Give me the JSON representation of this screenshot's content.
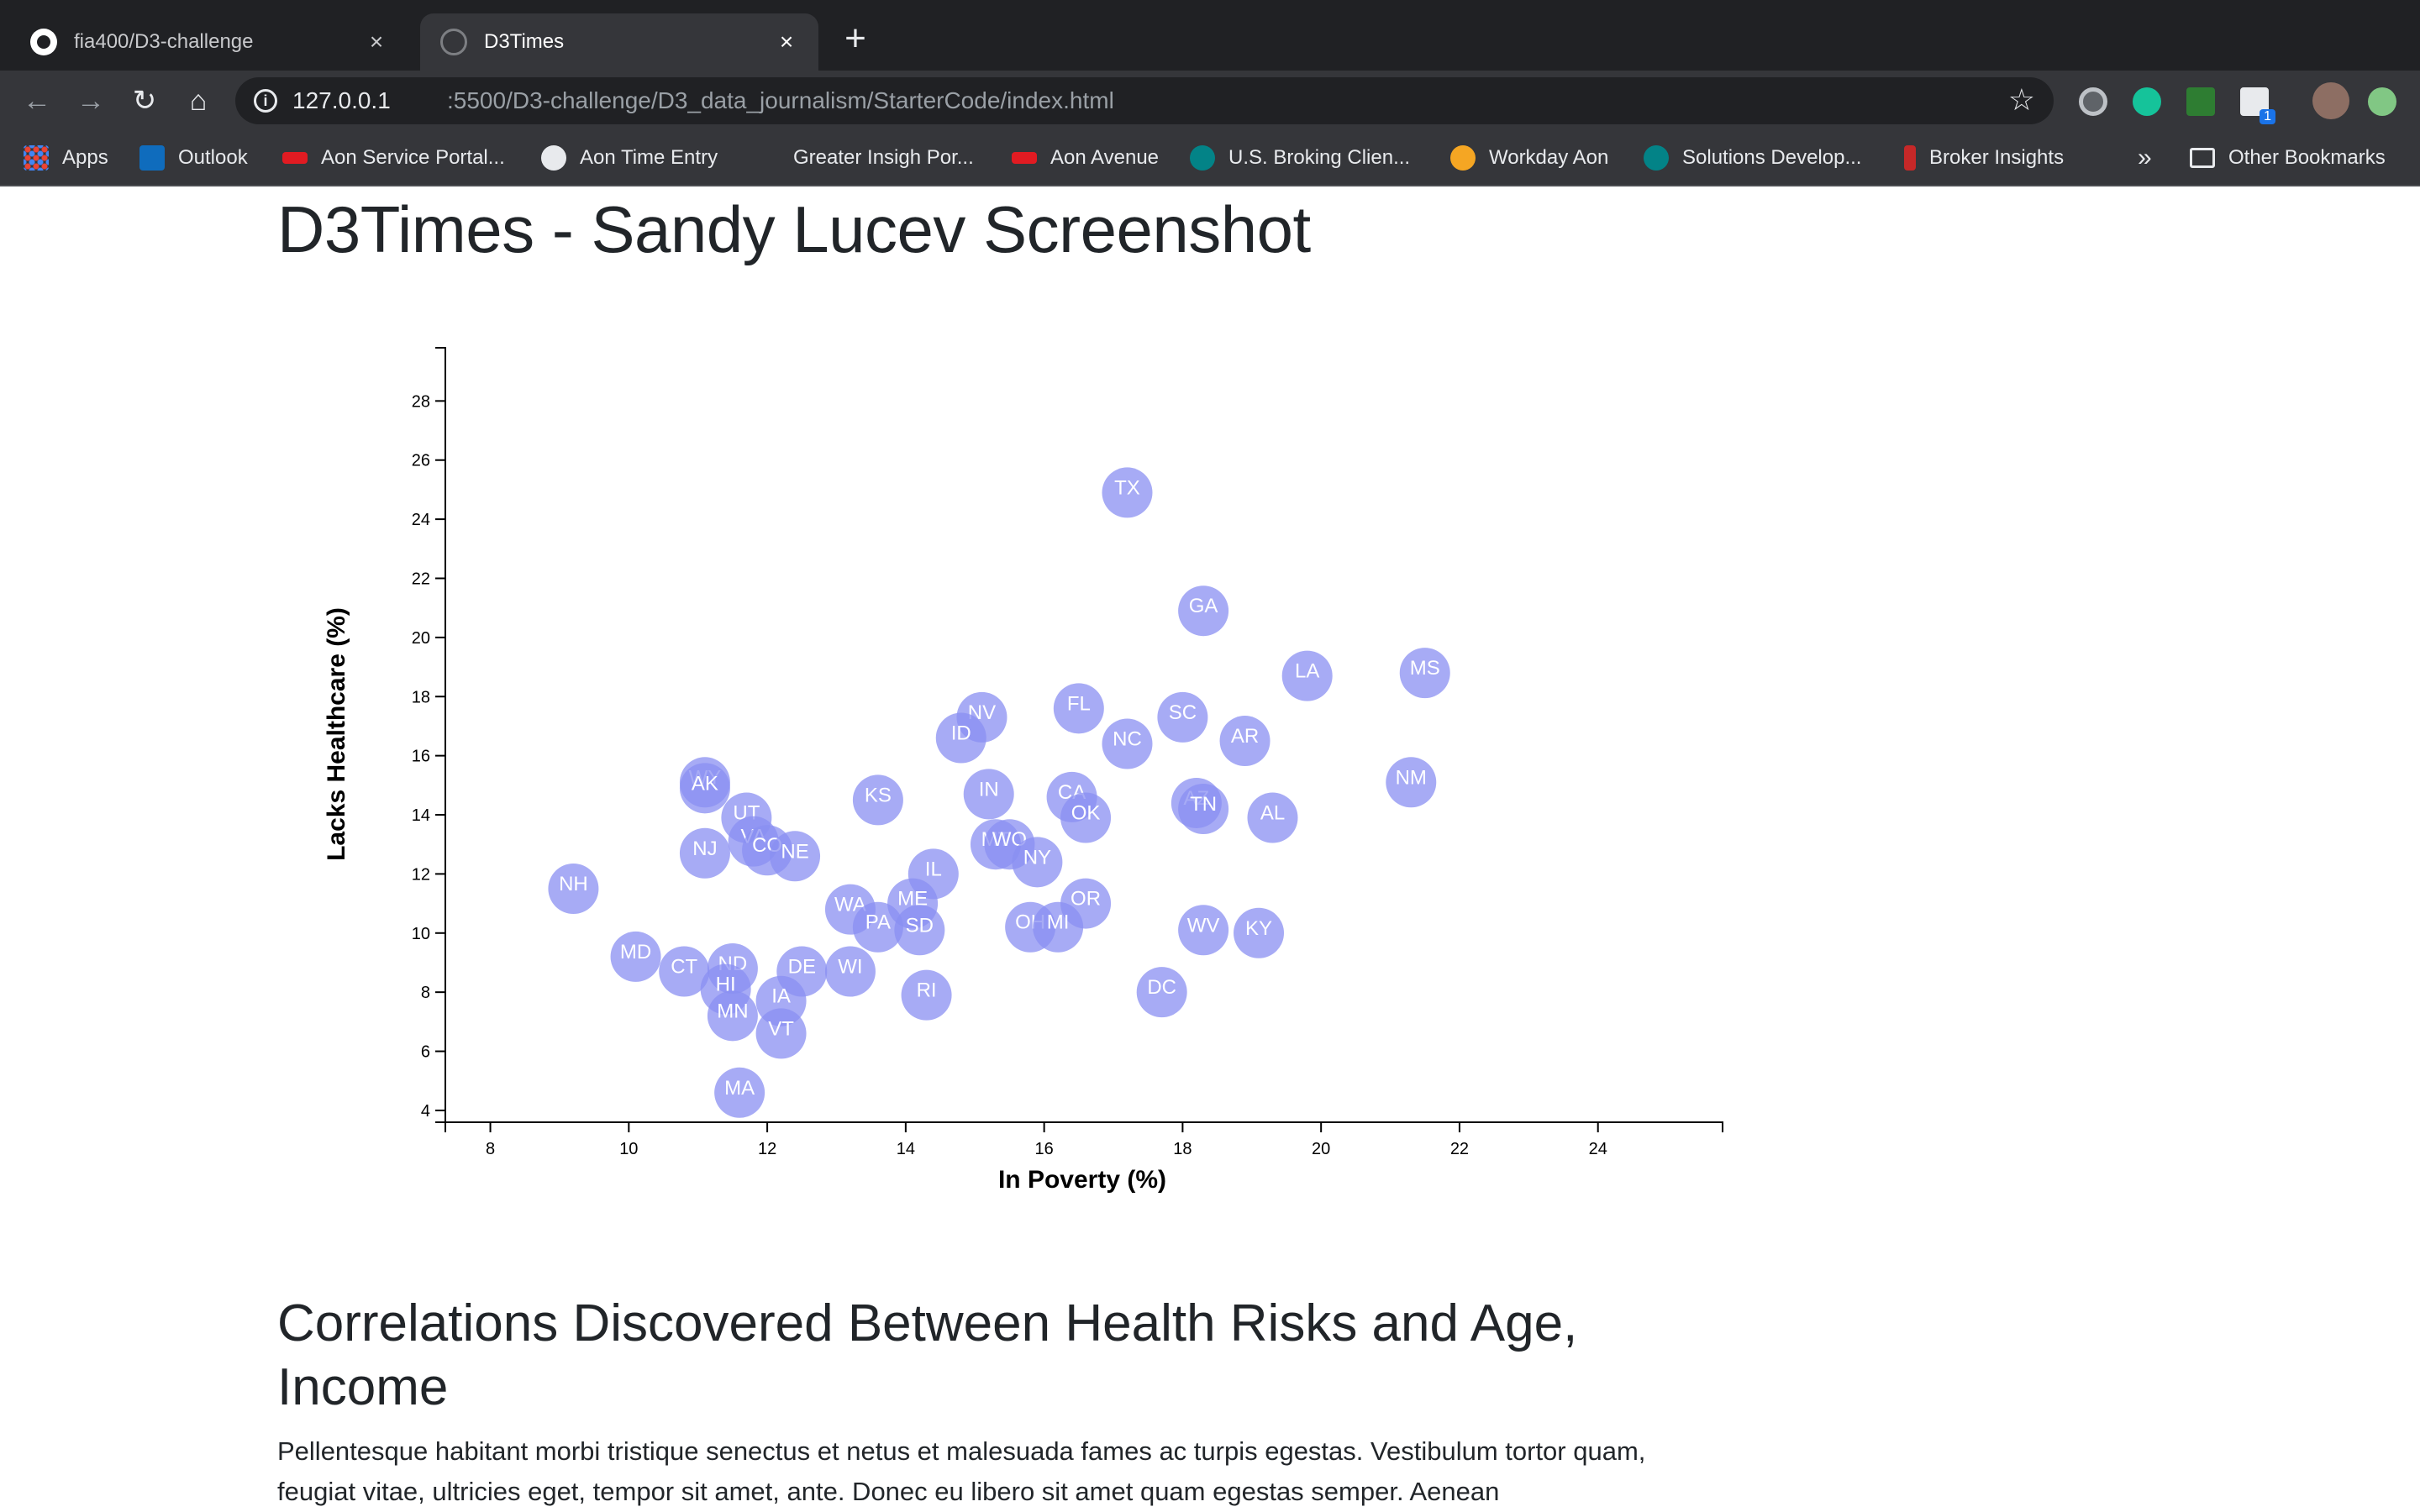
{
  "browser": {
    "tabs": [
      {
        "title": "fia400/D3-challenge",
        "icon": "github-icon"
      },
      {
        "title": "D3Times",
        "icon": "globe-icon"
      }
    ],
    "url_host": "127.0.0.1",
    "url_rest": ":5500/D3-challenge/D3_data_journalism/StarterCode/index.html",
    "bookmarks": [
      {
        "label": "Apps",
        "icon": "apps-grid-icon"
      },
      {
        "label": "Outlook",
        "icon": "outlook-icon"
      },
      {
        "label": "Aon Service Portal...",
        "icon": "aon-icon"
      },
      {
        "label": "Aon Time Entry",
        "icon": "globe-icon"
      },
      {
        "label": "Greater Insigh Por...",
        "icon": "blank-page-icon"
      },
      {
        "label": "Aon Avenue",
        "icon": "aon-icon"
      },
      {
        "label": "U.S. Broking Clien...",
        "icon": "sharepoint-icon"
      },
      {
        "label": "Workday Aon",
        "icon": "workday-icon"
      },
      {
        "label": "Solutions Develop...",
        "icon": "sharepoint-icon"
      },
      {
        "label": "Broker Insights",
        "icon": "insights-icon"
      },
      {
        "label": "»",
        "icon": "chevron-more-icon"
      },
      {
        "label": "Other Bookmarks",
        "icon": "folder-icon"
      }
    ],
    "extension_badge": "1"
  },
  "page": {
    "title": "D3Times - Sandy Lucev Screenshot",
    "section_heading": "Correlations Discovered Between Health Risks and Age, Income",
    "body_text": "Pellentesque habitant morbi tristique senectus et netus et malesuada fames ac turpis egestas. Vestibulum tortor quam, feugiat vitae, ultricies eget, tempor sit amet, ante. Donec eu libero sit amet quam egestas semper. Aenean"
  },
  "chart_data": {
    "type": "scatter",
    "xlabel": "In Poverty (%)",
    "ylabel": "Lacks Healthcare (%)",
    "xlim": [
      7.35,
      25.8
    ],
    "ylim": [
      3.6,
      29.8
    ],
    "xticks": [
      8,
      10,
      12,
      14,
      16,
      18,
      20,
      22,
      24
    ],
    "yticks": [
      4,
      6,
      8,
      10,
      12,
      14,
      16,
      18,
      20,
      22,
      24,
      26,
      28
    ],
    "marker_color": "#8a8ff2",
    "label_color": "#ffffff",
    "points": [
      {
        "label": "TX",
        "x": 17.2,
        "y": 24.9
      },
      {
        "label": "GA",
        "x": 18.3,
        "y": 20.9
      },
      {
        "label": "LA",
        "x": 19.8,
        "y": 18.7
      },
      {
        "label": "MS",
        "x": 21.5,
        "y": 18.8
      },
      {
        "label": "FL",
        "x": 16.5,
        "y": 17.6
      },
      {
        "label": "NV",
        "x": 15.1,
        "y": 17.3
      },
      {
        "label": "SC",
        "x": 18.0,
        "y": 17.3
      },
      {
        "label": "ID",
        "x": 14.8,
        "y": 16.6
      },
      {
        "label": "NC",
        "x": 17.2,
        "y": 16.4
      },
      {
        "label": "AR",
        "x": 18.9,
        "y": 16.5
      },
      {
        "label": "NM",
        "x": 21.3,
        "y": 15.1
      },
      {
        "label": "WY",
        "x": 11.1,
        "y": 15.1
      },
      {
        "label": "AK",
        "x": 11.1,
        "y": 14.9
      },
      {
        "label": "KS",
        "x": 13.6,
        "y": 14.5
      },
      {
        "label": "IN",
        "x": 15.2,
        "y": 14.7
      },
      {
        "label": "CA",
        "x": 16.4,
        "y": 14.6
      },
      {
        "label": "AZ",
        "x": 18.2,
        "y": 14.4
      },
      {
        "label": "TN",
        "x": 18.3,
        "y": 14.2
      },
      {
        "label": "OK",
        "x": 16.6,
        "y": 13.9
      },
      {
        "label": "AL",
        "x": 19.3,
        "y": 13.9
      },
      {
        "label": "UT",
        "x": 11.7,
        "y": 13.9
      },
      {
        "label": "VA",
        "x": 11.8,
        "y": 13.1
      },
      {
        "label": "CO",
        "x": 12.0,
        "y": 12.8
      },
      {
        "label": "NE",
        "x": 12.4,
        "y": 12.6
      },
      {
        "label": "NJ",
        "x": 11.1,
        "y": 12.7
      },
      {
        "label": "MT",
        "x": 15.3,
        "y": 13.0
      },
      {
        "label": "WO",
        "x": 15.5,
        "y": 13.0
      },
      {
        "label": "NY",
        "x": 15.9,
        "y": 12.4
      },
      {
        "label": "IL",
        "x": 14.4,
        "y": 12.0
      },
      {
        "label": "NH",
        "x": 9.2,
        "y": 11.5
      },
      {
        "label": "ME",
        "x": 14.1,
        "y": 11.0
      },
      {
        "label": "OR",
        "x": 16.6,
        "y": 11.0
      },
      {
        "label": "WA",
        "x": 13.2,
        "y": 10.8
      },
      {
        "label": "PA",
        "x": 13.6,
        "y": 10.2
      },
      {
        "label": "SD",
        "x": 14.2,
        "y": 10.1
      },
      {
        "label": "OH",
        "x": 15.8,
        "y": 10.2
      },
      {
        "label": "MI",
        "x": 16.2,
        "y": 10.2
      },
      {
        "label": "WV",
        "x": 18.3,
        "y": 10.1
      },
      {
        "label": "KY",
        "x": 19.1,
        "y": 10.0
      },
      {
        "label": "MD",
        "x": 10.1,
        "y": 9.2
      },
      {
        "label": "CT",
        "x": 10.8,
        "y": 8.7
      },
      {
        "label": "ND",
        "x": 11.5,
        "y": 8.8
      },
      {
        "label": "DE",
        "x": 12.5,
        "y": 8.7
      },
      {
        "label": "WI",
        "x": 13.2,
        "y": 8.7
      },
      {
        "label": "HI",
        "x": 11.4,
        "y": 8.1
      },
      {
        "label": "RI",
        "x": 14.3,
        "y": 7.9
      },
      {
        "label": "DC",
        "x": 17.7,
        "y": 8.0
      },
      {
        "label": "IA",
        "x": 12.2,
        "y": 7.7
      },
      {
        "label": "MN",
        "x": 11.5,
        "y": 7.2
      },
      {
        "label": "VT",
        "x": 12.2,
        "y": 6.6
      },
      {
        "label": "MA",
        "x": 11.6,
        "y": 4.6
      }
    ]
  }
}
